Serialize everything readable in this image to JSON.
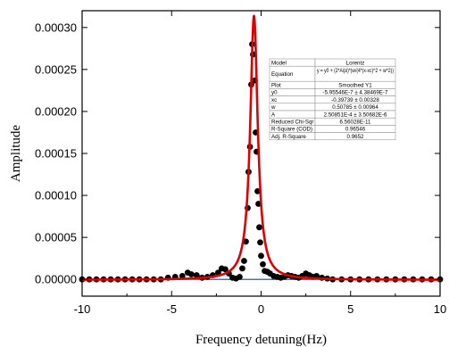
{
  "chart_data": {
    "type": "scatter",
    "xlabel": "Frequency detuning(Hz)",
    "ylabel": "Amplitude",
    "xlim": [
      -10,
      10
    ],
    "ylim": [
      -2e-05,
      0.00032
    ],
    "x_ticks": [
      -10,
      -5,
      0,
      5,
      10
    ],
    "x_tick_labels": [
      "-10",
      "-5",
      "0",
      "5",
      "10"
    ],
    "y_ticks": [
      0,
      5e-05,
      0.0001,
      0.00015,
      0.0002,
      0.00025,
      0.0003
    ],
    "y_tick_labels": [
      "0.00000",
      "0.00005",
      "0.00010",
      "0.00015",
      "0.00020",
      "0.00025",
      "0.00030"
    ],
    "colors": {
      "points": "#000000",
      "fit": "#e00000",
      "baseline": "#1a3fa0"
    },
    "series": [
      {
        "kind": "scatter",
        "points": [
          [
            -10,
            0.0
          ],
          [
            -9.6,
            0.0
          ],
          [
            -9.2,
            0.0
          ],
          [
            -8.8,
            0.0
          ],
          [
            -8.4,
            0.0
          ],
          [
            -8.0,
            0.0
          ],
          [
            -7.6,
            0.0
          ],
          [
            -7.2,
            0.0
          ],
          [
            -6.8,
            0.0
          ],
          [
            -6.4,
            0.0
          ],
          [
            -6.0,
            0.0
          ],
          [
            -5.6,
            0.0
          ],
          [
            -5.2,
            2e-06
          ],
          [
            -4.8,
            3e-06
          ],
          [
            -4.4,
            4e-06
          ],
          [
            -4.1,
            8e-06
          ],
          [
            -3.9,
            6e-06
          ],
          [
            -3.6,
            5e-06
          ],
          [
            -3.3,
            2e-06
          ],
          [
            -3.0,
            3e-06
          ],
          [
            -2.7,
            5e-06
          ],
          [
            -2.4,
            8e-06
          ],
          [
            -2.2,
            1.3e-05
          ],
          [
            -2.0,
            1.2e-05
          ],
          [
            -1.8,
            7e-06
          ],
          [
            -1.6,
            2e-06
          ],
          [
            -1.4,
            1e-06
          ],
          [
            -1.2,
            3e-06
          ],
          [
            -1.05,
            1.3e-05
          ],
          [
            -0.95,
            2.2e-05
          ],
          [
            -0.85,
            4.5e-05
          ],
          [
            -0.75,
            8.5e-05
          ],
          [
            -0.7,
            0.000128
          ],
          [
            -0.62,
            0.000158
          ],
          [
            -0.55,
            0.000232
          ],
          [
            -0.5,
            0.00028
          ],
          [
            -0.45,
            0.000268
          ],
          [
            -0.35,
            0.000237
          ],
          [
            -0.3,
            0.000175
          ],
          [
            -0.25,
            0.000152
          ],
          [
            -0.2,
            0.000105
          ],
          [
            -0.15,
            9e-05
          ],
          [
            -0.1,
            6.2e-05
          ],
          [
            -0.05,
            4.4e-05
          ],
          [
            0.0,
            2.8e-05
          ],
          [
            0.1,
            1.8e-05
          ],
          [
            0.2,
            1e-05
          ],
          [
            0.35,
            9e-06
          ],
          [
            0.5,
            7e-06
          ],
          [
            0.7,
            4e-06
          ],
          [
            0.9,
            3e-06
          ],
          [
            1.1,
            2e-06
          ],
          [
            1.3,
            3e-06
          ],
          [
            1.5,
            5e-06
          ],
          [
            1.7,
            4e-06
          ],
          [
            1.9,
            3e-06
          ],
          [
            2.1,
            2e-06
          ],
          [
            2.3,
            4e-06
          ],
          [
            2.5,
            7e-06
          ],
          [
            2.7,
            5e-06
          ],
          [
            2.9,
            3e-06
          ],
          [
            3.1,
            4e-06
          ],
          [
            3.4,
            2e-06
          ],
          [
            3.7,
            1e-06
          ],
          [
            4.0,
            0.0
          ],
          [
            4.5,
            0.0
          ],
          [
            5.0,
            0.0
          ],
          [
            5.5,
            0.0
          ],
          [
            6.0,
            0.0
          ],
          [
            6.5,
            0.0
          ],
          [
            7.0,
            0.0
          ],
          [
            7.5,
            0.0
          ],
          [
            8.0,
            0.0
          ],
          [
            8.5,
            0.0
          ],
          [
            9.0,
            0.0
          ],
          [
            9.5,
            0.0
          ],
          [
            10.0,
            0.0
          ]
        ]
      },
      {
        "kind": "lorentz-fit",
        "y0": -5.95546e-07,
        "xc": -0.39739,
        "w": 0.50785,
        "A": 0.000250851
      }
    ],
    "fit_table": {
      "rows": [
        [
          "Model",
          "Lorentz"
        ],
        [
          "Equation",
          "y = y0 + (2*A/pi)*(w/(4*(x-xc)^2 + w^2))"
        ],
        [
          "Plot",
          "Smoothed Y1"
        ],
        [
          "y0",
          "-5.95546E-7 ± 4.38469E-7"
        ],
        [
          "xc",
          "-0.39739 ± 0.00328"
        ],
        [
          "w",
          "0.50785 ± 0.00964"
        ],
        [
          "A",
          "2.50851E-4 ± 3.50682E-6"
        ],
        [
          "Reduced Chi-Sqr",
          "6.56028E-11"
        ],
        [
          "R-Square (COD)",
          "0.96546"
        ],
        [
          "Adj. R-Square",
          "0.9652"
        ]
      ]
    }
  }
}
